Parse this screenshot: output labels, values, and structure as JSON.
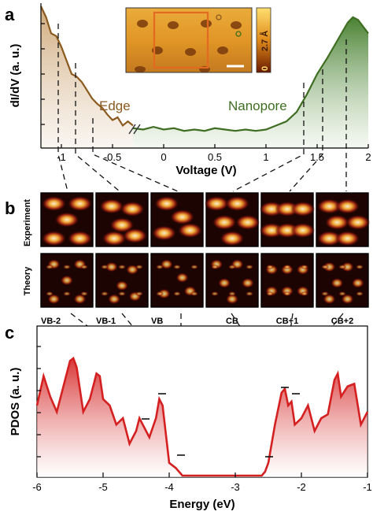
{
  "panels": {
    "a": {
      "letter": "a",
      "ylabel": "dI/dV (a. u.)",
      "xlabel": "Voltage (V)",
      "xticks": [
        "-1",
        "-0.5",
        "0",
        "0.5",
        "1",
        "1.5",
        "2"
      ],
      "edge_label": "Edge",
      "nanopore_label": "Nanopore",
      "inset_colorbar_max": "2.7 Å",
      "inset_colorbar_min": "0",
      "colors": {
        "edge": "#8b5a1f",
        "nanopore": "#3f6e22"
      }
    },
    "b": {
      "letter": "b",
      "row_labels": [
        "Experiment",
        "Theory"
      ],
      "states": [
        "VB-2",
        "VB-1",
        "VB",
        "CB",
        "CB+1",
        "CB+2"
      ]
    },
    "c": {
      "letter": "c",
      "ylabel": "PDOS (a. u.)",
      "xlabel": "Energy (eV)",
      "xticks": [
        "-6",
        "-5",
        "-4",
        "-3",
        "-2",
        "-1"
      ],
      "colors": {
        "line": "#d42020"
      }
    }
  },
  "chart_data": [
    {
      "type": "line",
      "title": "",
      "xlabel": "Voltage (V)",
      "ylabel": "dI/dV (a. u.)",
      "xlim": [
        -1.2,
        2.0
      ],
      "series": [
        {
          "name": "Edge",
          "x": [
            -1.2,
            -1.15,
            -1.1,
            -1.05,
            -1.0,
            -0.95,
            -0.9,
            -0.85,
            -0.8,
            -0.75,
            -0.7,
            -0.65,
            -0.6,
            -0.55,
            -0.5,
            -0.45,
            -0.4,
            -0.35,
            -0.3
          ],
          "y": [
            100,
            92,
            80,
            78,
            70,
            60,
            50,
            48,
            44,
            38,
            32,
            28,
            25,
            20,
            16,
            18,
            12,
            15,
            12
          ]
        },
        {
          "name": "Nanopore",
          "x": [
            -0.3,
            -0.2,
            -0.1,
            0,
            0.1,
            0.2,
            0.3,
            0.4,
            0.5,
            0.6,
            0.7,
            0.8,
            0.9,
            1.0,
            1.1,
            1.2,
            1.3,
            1.4,
            1.5,
            1.6,
            1.7,
            1.8,
            1.85,
            1.9,
            1.95,
            2.0
          ],
          "y": [
            10,
            9,
            11,
            9,
            10,
            8,
            9,
            8,
            10,
            9,
            8,
            9,
            8,
            9,
            12,
            15,
            22,
            35,
            50,
            62,
            75,
            88,
            92,
            90,
            85,
            80
          ]
        }
      ]
    },
    {
      "type": "area",
      "title": "",
      "xlabel": "Energy (eV)",
      "ylabel": "PDOS (a. u.)",
      "xlim": [
        -6,
        -1
      ],
      "series": [
        {
          "name": "",
          "x": [
            -6.0,
            -5.9,
            -5.8,
            -5.7,
            -5.6,
            -5.5,
            -5.45,
            -5.4,
            -5.3,
            -5.2,
            -5.1,
            -5.05,
            -5.0,
            -4.9,
            -4.8,
            -4.7,
            -4.6,
            -4.5,
            -4.45,
            -4.4,
            -4.3,
            -4.2,
            -4.15,
            -4.1,
            -4.0,
            -3.9,
            -3.8,
            -3.7,
            -3.6,
            -3.5,
            -3.4,
            -3.3,
            -3.2,
            -3.1,
            -3.0,
            -2.9,
            -2.8,
            -2.7,
            -2.6,
            -2.55,
            -2.5,
            -2.4,
            -2.3,
            -2.25,
            -2.2,
            -2.15,
            -2.1,
            -2.0,
            -1.9,
            -1.8,
            -1.7,
            -1.6,
            -1.5,
            -1.45,
            -1.4,
            -1.3,
            -1.2,
            -1.1,
            -1.0
          ],
          "y": [
            55,
            78,
            62,
            50,
            70,
            90,
            92,
            85,
            50,
            60,
            80,
            78,
            60,
            55,
            40,
            45,
            25,
            35,
            45,
            40,
            30,
            45,
            60,
            55,
            10,
            6,
            0,
            0,
            0,
            0,
            0,
            0,
            0,
            0,
            0,
            0,
            0,
            0,
            0,
            3,
            10,
            40,
            65,
            68,
            55,
            58,
            40,
            45,
            55,
            35,
            45,
            48,
            75,
            80,
            62,
            70,
            72,
            40,
            50
          ]
        }
      ]
    }
  ]
}
